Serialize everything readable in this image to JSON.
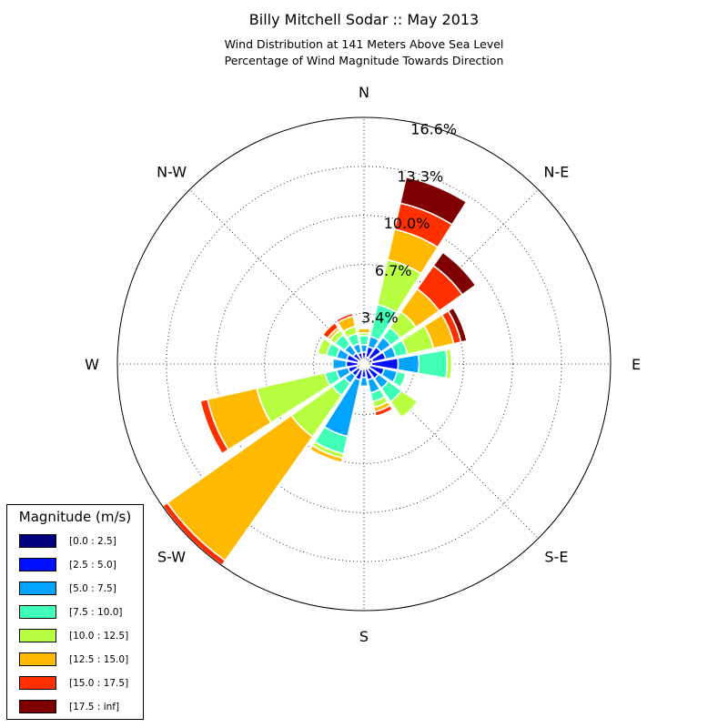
{
  "chart_data": {
    "type": "windrose",
    "title": "Billy Mitchell Sodar :: May 2013",
    "subtitle_lines": [
      "Wind Distribution at 141 Meters Above Sea Level",
      "Percentage of Wind Magnitude Towards Direction"
    ],
    "directions": [
      "N",
      "N-E",
      "E",
      "S-E",
      "S",
      "S-W",
      "W",
      "N-W"
    ],
    "ring_labels": [
      "3.4%",
      "6.7%",
      "10.0%",
      "13.3%",
      "16.6%"
    ],
    "rings": [
      3.4,
      6.7,
      10.0,
      13.3,
      16.6
    ],
    "r_max": 16.6,
    "grid": true,
    "bins": [
      {
        "label": "[0.0 : 2.5]",
        "color": "#00007f"
      },
      {
        "label": "[2.5 : 5.0]",
        "color": "#0010ff"
      },
      {
        "label": "[5.0 : 7.5]",
        "color": "#00a4ff"
      },
      {
        "label": "[7.5 : 10.0]",
        "color": "#40ffb7"
      },
      {
        "label": "[10.0 : 12.5]",
        "color": "#b7ff40"
      },
      {
        "label": "[12.5 : 15.0]",
        "color": "#ffb900"
      },
      {
        "label": "[15.0 : 17.5]",
        "color": "#ff3000"
      },
      {
        "label": "[17.5 : inf]",
        "color": "#7f0000"
      }
    ],
    "sectors": [
      {
        "direction_deg": 0,
        "cumulative": [
          0.3,
          0.8,
          1.3,
          1.9,
          2.1,
          2.4,
          2.5,
          2.5
        ]
      },
      {
        "direction_deg": 22.5,
        "cumulative": [
          0.5,
          1.2,
          1.9,
          4.1,
          7.2,
          9.3,
          11.1,
          12.9
        ]
      },
      {
        "direction_deg": 45,
        "cumulative": [
          0.5,
          1.4,
          2.2,
          3.0,
          4.3,
          6.2,
          8.1,
          9.2
        ]
      },
      {
        "direction_deg": 67.5,
        "cumulative": [
          0.6,
          1.5,
          2.2,
          3.0,
          4.8,
          6.2,
          6.7,
          7.1
        ]
      },
      {
        "direction_deg": 90,
        "cumulative": [
          0.5,
          2.3,
          3.7,
          5.6,
          5.9,
          5.9,
          5.9,
          5.9
        ]
      },
      {
        "direction_deg": 112.5,
        "cumulative": [
          0.4,
          1.4,
          2.3,
          2.9,
          3.0,
          3.0,
          3.0,
          3.0
        ]
      },
      {
        "direction_deg": 135,
        "cumulative": [
          0.4,
          1.2,
          2.0,
          3.1,
          4.4,
          4.4,
          4.4,
          4.4
        ]
      },
      {
        "direction_deg": 157.5,
        "cumulative": [
          0.3,
          1.1,
          2.0,
          2.6,
          3.0,
          3.3,
          3.6,
          3.6
        ]
      },
      {
        "direction_deg": 180,
        "cumulative": [
          0.3,
          0.9,
          1.5,
          1.6,
          1.7,
          1.7,
          1.7,
          1.7
        ]
      },
      {
        "direction_deg": 202.5,
        "cumulative": [
          0.4,
          1.1,
          5.0,
          6.2,
          6.5,
          6.8,
          6.8,
          6.8
        ]
      },
      {
        "direction_deg": 225,
        "cumulative": [
          0.4,
          1.0,
          1.6,
          2.6,
          6.0,
          16.2,
          16.6,
          16.6
        ]
      },
      {
        "direction_deg": 247.5,
        "cumulative": [
          0.5,
          1.1,
          1.9,
          2.7,
          7.4,
          10.8,
          11.3,
          11.3
        ]
      },
      {
        "direction_deg": 270,
        "cumulative": [
          0.4,
          1.2,
          2.1,
          2.1,
          2.1,
          2.1,
          2.1,
          2.1
        ]
      },
      {
        "direction_deg": 292.5,
        "cumulative": [
          0.4,
          1.2,
          1.9,
          2.6,
          3.2,
          3.2,
          3.2,
          3.2
        ]
      },
      {
        "direction_deg": 315,
        "cumulative": [
          0.3,
          0.9,
          1.6,
          2.4,
          2.8,
          3.0,
          3.4,
          3.4
        ]
      },
      {
        "direction_deg": 337.5,
        "cumulative": [
          0.3,
          0.8,
          1.4,
          2.1,
          2.6,
          3.3,
          3.5,
          3.5
        ]
      }
    ]
  },
  "legend": {
    "title": "Magnitude (m/s)"
  }
}
